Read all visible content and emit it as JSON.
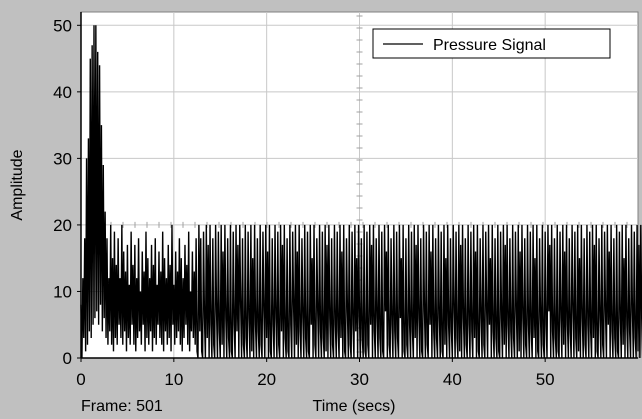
{
  "chart_data": {
    "type": "line",
    "xlabel": "Time (secs)",
    "ylabel": "Amplitude",
    "xlim": [
      0,
      60
    ],
    "ylim": [
      0,
      52
    ],
    "x_ticks": [
      0,
      10,
      20,
      30,
      40,
      50
    ],
    "y_ticks": [
      0,
      10,
      20,
      30,
      40,
      50
    ],
    "grid": true,
    "legend_position": "top-right",
    "footer_left": "Frame: 501",
    "series": [
      {
        "name": "Pressure Signal",
        "color": "#000000",
        "x_step": 0.1,
        "x_start": 0,
        "values": [
          8,
          0,
          12,
          3,
          18,
          1,
          30,
          2,
          33,
          4,
          45,
          3,
          47,
          5,
          50,
          6,
          50,
          7,
          46,
          5,
          44,
          8,
          35,
          4,
          29,
          6,
          22,
          3,
          18,
          2,
          12,
          4,
          20,
          2,
          15,
          1,
          19,
          3,
          14,
          2,
          18,
          5,
          12,
          3,
          20,
          2,
          16,
          4,
          13,
          1,
          17,
          3,
          11,
          2,
          19,
          5,
          14,
          2,
          17,
          1,
          12,
          3,
          18,
          4,
          10,
          2,
          16,
          5,
          13,
          1,
          19,
          3,
          15,
          2,
          12,
          4,
          17,
          1,
          14,
          3,
          18,
          2,
          11,
          5,
          16,
          3,
          13,
          2,
          19,
          1,
          15,
          4,
          12,
          2,
          17,
          3,
          14,
          1,
          20,
          5,
          11,
          2,
          16,
          3,
          13,
          4,
          18,
          2,
          15,
          1,
          12,
          3,
          17,
          5,
          14,
          2,
          19,
          1,
          10,
          4,
          16,
          3,
          13,
          2,
          18,
          1,
          0,
          20,
          4,
          18,
          1,
          0,
          19,
          6,
          0,
          20,
          3,
          17,
          0,
          20,
          5,
          0,
          18,
          2,
          0,
          20,
          7,
          0,
          19,
          4,
          0,
          20,
          2,
          16,
          0,
          20,
          6,
          0,
          18,
          3,
          0,
          20,
          1,
          0,
          19,
          5,
          0,
          20,
          4,
          17,
          0,
          20,
          8,
          0,
          18,
          2,
          0,
          20,
          3,
          0,
          19,
          6,
          0,
          20,
          1,
          15,
          0,
          20,
          5,
          0,
          18,
          4,
          0,
          20,
          2,
          0,
          19,
          7,
          0,
          20,
          3,
          16,
          0,
          20,
          1,
          0,
          18,
          5,
          0,
          20,
          6,
          0,
          19,
          2,
          0,
          20,
          4,
          17,
          0,
          20,
          3,
          0,
          18,
          1,
          0,
          20,
          5,
          0,
          19,
          8,
          0,
          20,
          2,
          16,
          0,
          20,
          4,
          0,
          18,
          6,
          0,
          20,
          3,
          0,
          19,
          1,
          0,
          20,
          5,
          15,
          0,
          20,
          2,
          0,
          18,
          7,
          0,
          20,
          4,
          0,
          19,
          3,
          0,
          20,
          1,
          17,
          0,
          20,
          6,
          0,
          18,
          2,
          0,
          20,
          5,
          0,
          19,
          4,
          0,
          20,
          3,
          16,
          0,
          20,
          1,
          0,
          18,
          7,
          0,
          20,
          2,
          0,
          19,
          5,
          0,
          20,
          4,
          15,
          0,
          20,
          6,
          0,
          18,
          3,
          0,
          20,
          1,
          0,
          19,
          2,
          0,
          20,
          5,
          17,
          0,
          20,
          4,
          0,
          18,
          6,
          0,
          20,
          3,
          0,
          19,
          1,
          0,
          20,
          7,
          16,
          0,
          20,
          2,
          0,
          18,
          5,
          0,
          20,
          4,
          0,
          19,
          3,
          0,
          20,
          6,
          15,
          0,
          20,
          1,
          0,
          18,
          2,
          0,
          20,
          5,
          0,
          19,
          4,
          0,
          20,
          3,
          17,
          0,
          20,
          6,
          0,
          18,
          1,
          0,
          20,
          7,
          0,
          19,
          2,
          0,
          20,
          5,
          16,
          0,
          20,
          4,
          0,
          18,
          3,
          0,
          20,
          6,
          0,
          19,
          1,
          0,
          20,
          2,
          15,
          0,
          20,
          5,
          0,
          18,
          4,
          0,
          20,
          7,
          0,
          19,
          3,
          0,
          20,
          1,
          17,
          0,
          20,
          6,
          0,
          18,
          2,
          0,
          20,
          5,
          0,
          19,
          4,
          0,
          20,
          3,
          16,
          0,
          20,
          1,
          0,
          18,
          6,
          0,
          20,
          2,
          0,
          19,
          7,
          0,
          20,
          5,
          15,
          0,
          20,
          4,
          0,
          18,
          3,
          0,
          20,
          1,
          0,
          19,
          6,
          0,
          20,
          2,
          17,
          0,
          20,
          5,
          0,
          18,
          4,
          0,
          20,
          3,
          0,
          19,
          7,
          0,
          20,
          1,
          16,
          0,
          20,
          6,
          0,
          18,
          2,
          0,
          20,
          5,
          0,
          19,
          4,
          0,
          20,
          3,
          15,
          0,
          20,
          1,
          0,
          18,
          6,
          0,
          20,
          2,
          0,
          19,
          5,
          0,
          20,
          7,
          17,
          0,
          20,
          4,
          0,
          18,
          3,
          0,
          20,
          1,
          0,
          19,
          6,
          0,
          20,
          2,
          16,
          0,
          20,
          5,
          0,
          18,
          4,
          0,
          20,
          7,
          0,
          19,
          3,
          0,
          20,
          1,
          15,
          0,
          20,
          6,
          0,
          18,
          2,
          0,
          20,
          5,
          0,
          19,
          4,
          0,
          20,
          3,
          17,
          0,
          20,
          1,
          0,
          18,
          6,
          0,
          20,
          2,
          0,
          19,
          7,
          0,
          20,
          5,
          16,
          0,
          20,
          4,
          0,
          18,
          3,
          0,
          20,
          1,
          0,
          19,
          6,
          0,
          20,
          2,
          15,
          0,
          20,
          5,
          0,
          18,
          4,
          0,
          20,
          7,
          0,
          19,
          3,
          0,
          20,
          1,
          17,
          0,
          20,
          6,
          0,
          18,
          2,
          0,
          16,
          9,
          12,
          3,
          0,
          0
        ]
      }
    ]
  }
}
